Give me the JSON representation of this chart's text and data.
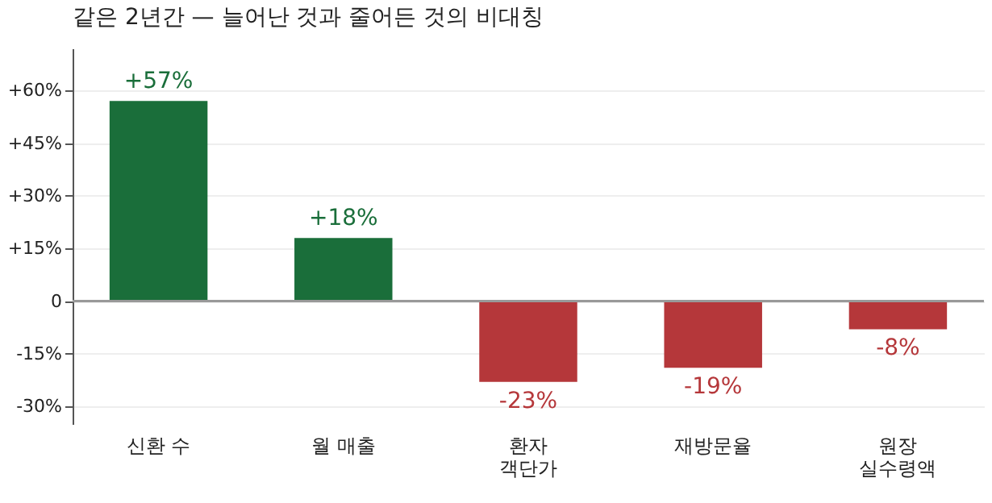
{
  "chart_data": {
    "type": "bar",
    "title": "같은 2년간 — 늘어난 것과 줄어든 것의 비대칭",
    "categories": [
      "신환 수",
      "월 매출",
      "환자\n객단가",
      "재방문율",
      "원장\n실수령액"
    ],
    "values": [
      57,
      18,
      -23,
      -19,
      -8
    ],
    "colors": [
      "#1a6e3a",
      "#1a6e3a",
      "#b5373a",
      "#b5373a",
      "#b5373a"
    ],
    "value_labels": [
      "+57%",
      "+18%",
      "-23%",
      "-19%",
      "-8%"
    ],
    "ylim": [
      -35,
      72
    ],
    "yticks": [
      {
        "value": -30,
        "label": "-30%"
      },
      {
        "value": -15,
        "label": "-15%"
      },
      0,
      {
        "value": 15,
        "label": "+15%"
      },
      {
        "value": 30,
        "label": "+30%"
      },
      {
        "value": 45,
        "label": "+45%"
      },
      {
        "value": 60,
        "label": "+60%"
      }
    ],
    "ref_lines": [
      {
        "axis": "y",
        "value": 0,
        "color": "#999999"
      }
    ],
    "grid": "y"
  }
}
